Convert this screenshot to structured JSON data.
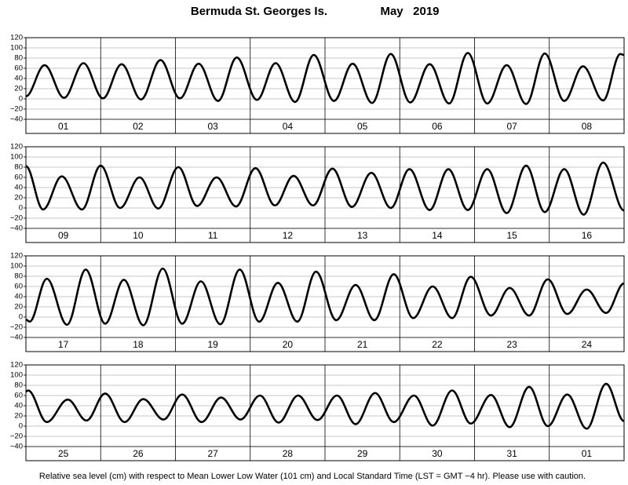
{
  "header": {
    "title": "Bermuda St. Georges Is.",
    "date": "May   2019"
  },
  "footer": "Relative sea level (cm) with respect to Mean Lower Low Water (101 cm) and Local Standard Time (LST = GMT −4 hr). Please use with caution.",
  "chart_data": [
    {
      "type": "line",
      "color": "#000000",
      "grid": true,
      "categories": [
        "01",
        "02",
        "03",
        "04",
        "05",
        "06",
        "07",
        "08"
      ],
      "xlim": [
        0,
        8
      ],
      "ylim": [
        -40,
        120
      ],
      "yticks": [
        {
          "value": -40,
          "label": "−40"
        },
        {
          "value": -20,
          "label": "−20"
        },
        0,
        20,
        40,
        60,
        80,
        100,
        120
      ],
      "x": [
        0,
        0.25,
        0.51,
        0.77,
        1.03,
        1.28,
        1.54,
        1.8,
        2.06,
        2.31,
        2.57,
        2.82,
        3.09,
        3.34,
        3.6,
        3.85,
        4.12,
        4.37,
        4.63,
        4.88,
        5.14,
        5.4,
        5.66,
        5.91,
        6.17,
        6.43,
        6.69,
        6.94,
        7.2,
        7.45,
        7.72,
        7.95,
        8.0
      ],
      "values": [
        5,
        66,
        2,
        70,
        1,
        68,
        -1,
        76,
        1,
        69,
        -4,
        81,
        -2,
        70,
        -6,
        86,
        -4,
        69,
        -8,
        88,
        -7,
        68,
        -9,
        90,
        -9,
        66,
        -10,
        89,
        -4,
        64,
        -3,
        88,
        86
      ]
    },
    {
      "type": "line",
      "color": "#000000",
      "grid": true,
      "categories": [
        "09",
        "10",
        "11",
        "12",
        "13",
        "14",
        "15",
        "16"
      ],
      "xlim": [
        0,
        8
      ],
      "ylim": [
        -40,
        120
      ],
      "yticks": [
        {
          "value": -40,
          "label": "−40"
        },
        {
          "value": -20,
          "label": "−20"
        },
        0,
        20,
        40,
        60,
        80,
        100,
        120
      ],
      "x": [
        0,
        0.23,
        0.48,
        0.75,
        1.0,
        1.26,
        1.52,
        1.77,
        2.04,
        2.29,
        2.55,
        2.81,
        3.07,
        3.33,
        3.58,
        3.84,
        4.1,
        4.36,
        4.62,
        4.88,
        5.13,
        5.4,
        5.65,
        5.91,
        6.17,
        6.43,
        6.69,
        6.94,
        7.2,
        7.46,
        7.72,
        8.0
      ],
      "values": [
        82,
        -3,
        62,
        -3,
        83,
        0,
        60,
        -1,
        80,
        4,
        60,
        3,
        78,
        5,
        63,
        5,
        77,
        2,
        69,
        0,
        76,
        -4,
        76,
        -4,
        76,
        -10,
        83,
        -8,
        76,
        -13,
        89,
        -5
      ]
    },
    {
      "type": "line",
      "color": "#000000",
      "grid": true,
      "categories": [
        "17",
        "18",
        "19",
        "20",
        "21",
        "22",
        "23",
        "24"
      ],
      "xlim": [
        0,
        8
      ],
      "ylim": [
        -40,
        120
      ],
      "yticks": [
        {
          "value": -40,
          "label": "−40"
        },
        {
          "value": -20,
          "label": "−20"
        },
        0,
        20,
        40,
        60,
        80,
        100,
        120
      ],
      "x": [
        0,
        0.05,
        0.28,
        0.55,
        0.8,
        1.06,
        1.31,
        1.57,
        1.83,
        2.09,
        2.34,
        2.6,
        2.86,
        3.12,
        3.37,
        3.63,
        3.88,
        4.15,
        4.41,
        4.66,
        4.92,
        5.18,
        5.44,
        5.7,
        5.95,
        6.22,
        6.47,
        6.73,
        6.98,
        7.24,
        7.5,
        7.76,
        8.0
      ],
      "values": [
        -5,
        -9,
        75,
        -15,
        93,
        -13,
        73,
        -16,
        95,
        -13,
        70,
        -14,
        93,
        -9,
        67,
        -9,
        89,
        -6,
        63,
        -6,
        84,
        -2,
        60,
        -2,
        79,
        3,
        57,
        3,
        74,
        6,
        54,
        8,
        66
      ]
    },
    {
      "type": "line",
      "color": "#000000",
      "grid": true,
      "categories": [
        "25",
        "26",
        "27",
        "28",
        "29",
        "30",
        "31",
        "01"
      ],
      "xlim": [
        0,
        8
      ],
      "ylim": [
        -40,
        120
      ],
      "yticks": [
        {
          "value": -40,
          "label": "−40"
        },
        {
          "value": -20,
          "label": "−20"
        },
        0,
        20,
        40,
        60,
        80,
        100,
        120
      ],
      "x": [
        0,
        0.03,
        0.28,
        0.56,
        0.81,
        1.06,
        1.32,
        1.57,
        1.84,
        2.09,
        2.35,
        2.61,
        2.87,
        3.13,
        3.38,
        3.64,
        3.9,
        4.16,
        4.41,
        4.67,
        4.92,
        5.19,
        5.44,
        5.7,
        5.95,
        6.22,
        6.47,
        6.73,
        6.98,
        7.24,
        7.5,
        7.76,
        8.0
      ],
      "values": [
        68,
        70,
        8,
        52,
        11,
        64,
        8,
        53,
        13,
        62,
        8,
        56,
        13,
        60,
        7,
        60,
        12,
        60,
        4,
        65,
        8,
        60,
        1,
        70,
        5,
        61,
        -2,
        77,
        0,
        62,
        -5,
        83,
        10
      ]
    }
  ]
}
